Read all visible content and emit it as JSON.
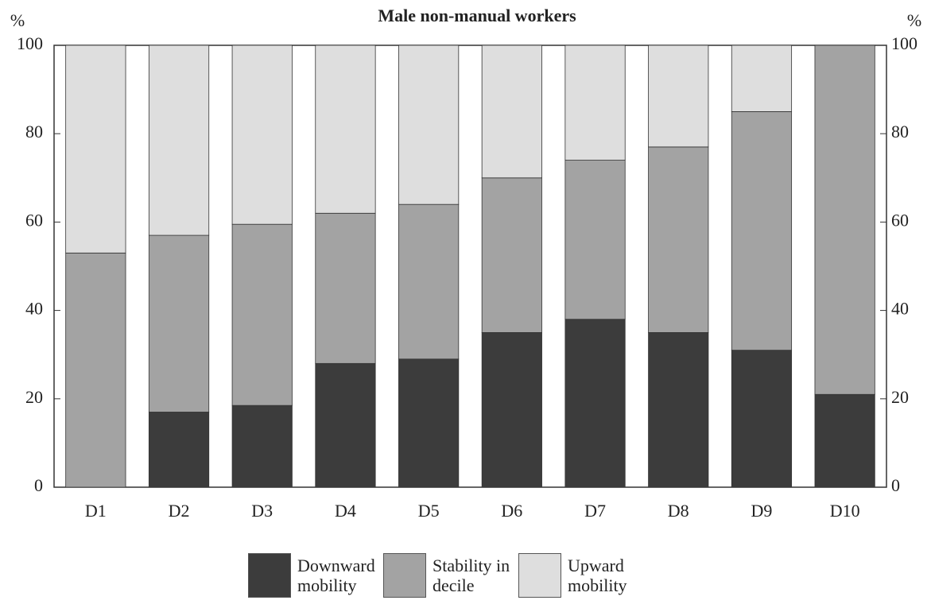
{
  "chart_data": {
    "type": "stacked_bar",
    "title": "Male non-manual workers",
    "y_label": "%",
    "y2_label": "%",
    "categories": [
      "D1",
      "D2",
      "D3",
      "D4",
      "D5",
      "D6",
      "D7",
      "D8",
      "D9",
      "D10"
    ],
    "series": [
      {
        "name": "Downward mobility",
        "color": "#3c3c3c",
        "values": [
          0,
          17,
          18.5,
          28,
          29,
          35,
          38,
          35,
          31,
          21
        ]
      },
      {
        "name": "Stability in decile",
        "color": "#a3a3a3",
        "values": [
          53,
          40,
          41,
          34,
          35,
          35,
          36,
          42,
          54,
          79
        ]
      },
      {
        "name": "Upward mobility",
        "color": "#dedede",
        "values": [
          47,
          43,
          40.5,
          38,
          36,
          30,
          26,
          23,
          15,
          0
        ]
      }
    ],
    "ylim": [
      0,
      100
    ],
    "yticks": [
      0,
      20,
      40,
      60,
      80,
      100
    ],
    "y2lim": [
      0,
      100
    ],
    "y2ticks": [
      0,
      20,
      40,
      60,
      80,
      100
    ]
  }
}
